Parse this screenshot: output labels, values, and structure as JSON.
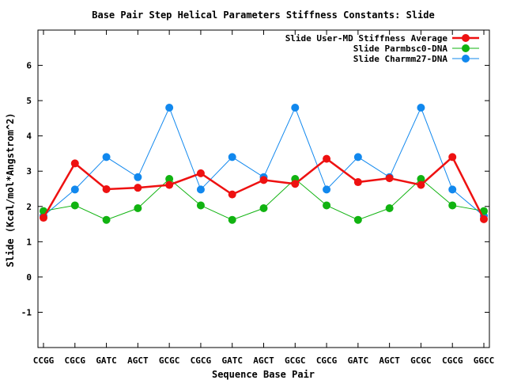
{
  "chart_data": {
    "type": "line",
    "title": "Base Pair Step Helical Parameters Stiffness Constants: Slide",
    "xlabel": "Sequence Base Pair",
    "ylabel": "Slide (Kcal/mol*Angstrom^2)",
    "ylim": [
      -2,
      7
    ],
    "yticks": [
      -1,
      0,
      1,
      2,
      3,
      4,
      5,
      6
    ],
    "grid": false,
    "legend_position": "top-right",
    "categories": [
      "CCGG",
      "CGCG",
      "GATC",
      "AGCT",
      "GCGC",
      "CGCG",
      "GATC",
      "AGCT",
      "GCGC",
      "CGCG",
      "GATC",
      "AGCT",
      "GCGC",
      "CGCG",
      "GGCC"
    ],
    "series": [
      {
        "name": "Slide User-MD Stiffness Average",
        "color": "#ee1111",
        "values": [
          1.68,
          3.22,
          2.49,
          2.53,
          2.61,
          2.94,
          2.34,
          2.75,
          2.64,
          3.35,
          2.69,
          2.8,
          2.61,
          3.4,
          1.64
        ]
      },
      {
        "name": "Slide Parmbsc0-DNA",
        "color": "#11b311",
        "values": [
          1.87,
          2.03,
          1.62,
          1.95,
          2.78,
          2.03,
          1.62,
          1.95,
          2.78,
          2.03,
          1.62,
          1.95,
          2.78,
          2.03,
          1.87
        ]
      },
      {
        "name": "Slide Charmm27-DNA",
        "color": "#1188ee",
        "values": [
          1.73,
          2.48,
          3.4,
          2.83,
          4.8,
          2.48,
          3.4,
          2.83,
          4.8,
          2.48,
          3.4,
          2.83,
          4.8,
          2.48,
          1.73
        ]
      }
    ]
  }
}
